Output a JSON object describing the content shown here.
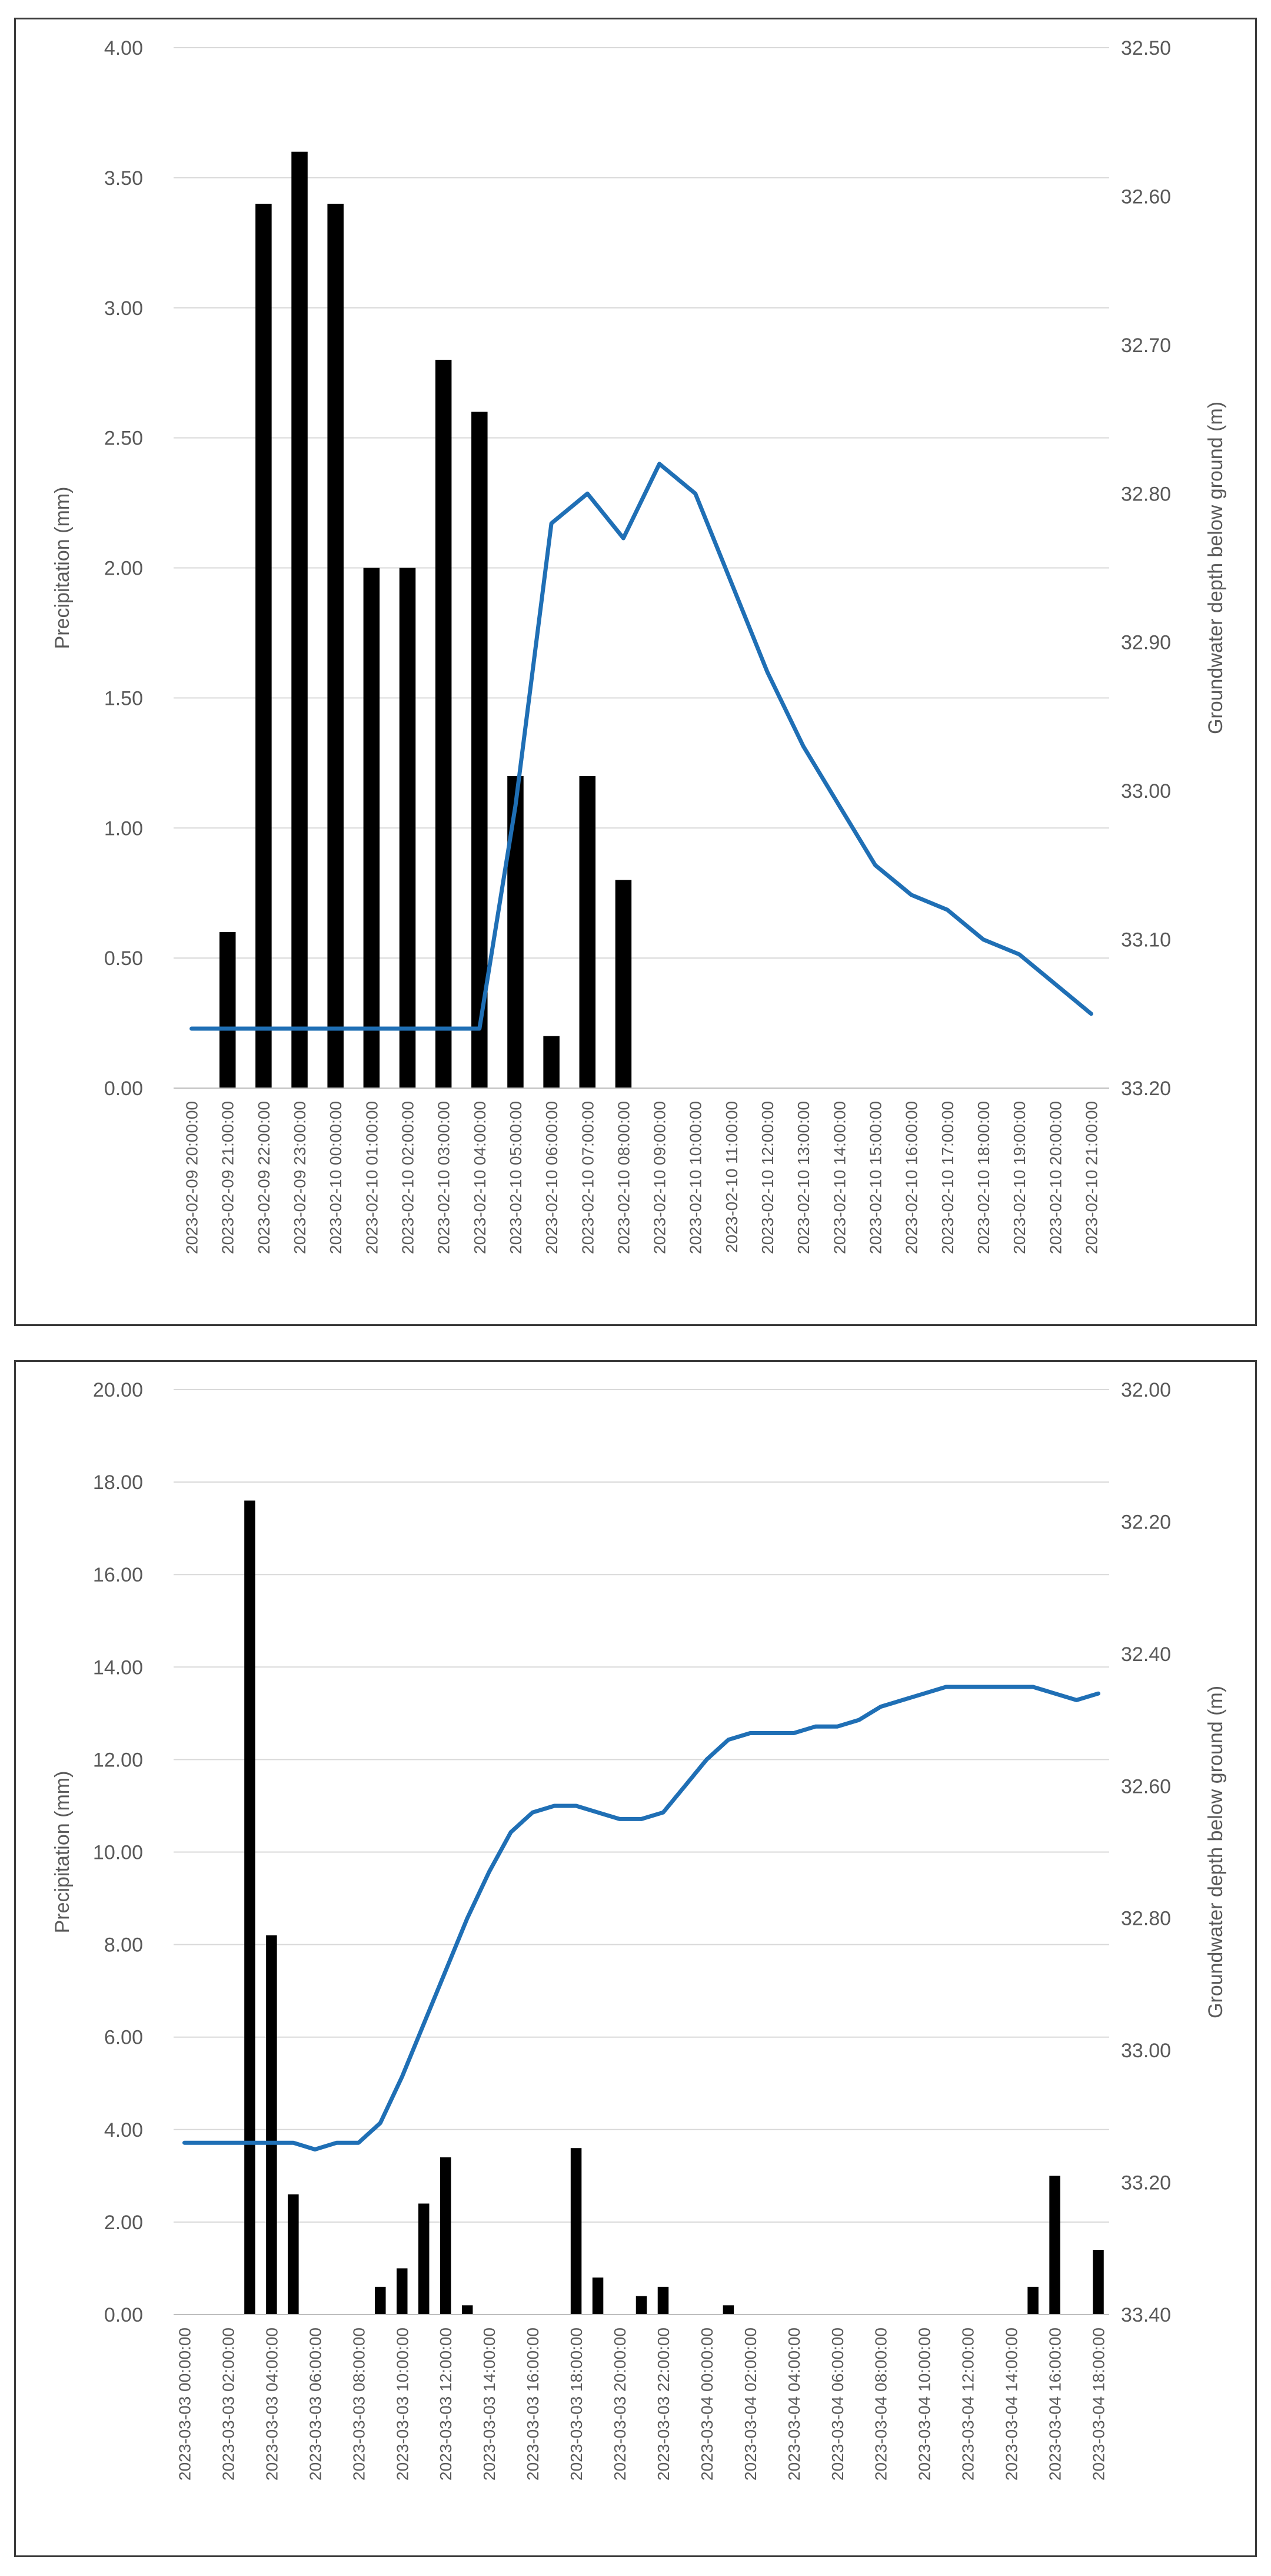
{
  "chart_data": [
    {
      "type": "bar+line",
      "title": "",
      "ylabel": "Precipitation (mm)",
      "y2label": "Groundwater depth below ground (m)",
      "ylim": [
        0,
        4
      ],
      "y_ticks": [
        "0.00",
        "0.50",
        "1.00",
        "1.50",
        "2.00",
        "2.50",
        "3.00",
        "3.50",
        "4.00"
      ],
      "y2lim": [
        32.5,
        33.2
      ],
      "y2_inverted": true,
      "y2_ticks": [
        "32.50",
        "32.60",
        "32.70",
        "32.80",
        "32.90",
        "33.00",
        "33.10",
        "33.20"
      ],
      "categories": [
        "2023-02-09 20:00:00",
        "2023-02-09 21:00:00",
        "2023-02-09 22:00:00",
        "2023-02-09 23:00:00",
        "2023-02-10 00:00:00",
        "2023-02-10 01:00:00",
        "2023-02-10 02:00:00",
        "2023-02-10 03:00:00",
        "2023-02-10 04:00:00",
        "2023-02-10 05:00:00",
        "2023-02-10 06:00:00",
        "2023-02-10 07:00:00",
        "2023-02-10 08:00:00",
        "2023-02-10 09:00:00",
        "2023-02-10 10:00:00",
        "2023-02-10 11:00:00",
        "2023-02-10 12:00:00",
        "2023-02-10 13:00:00",
        "2023-02-10 14:00:00",
        "2023-02-10 15:00:00",
        "2023-02-10 16:00:00",
        "2023-02-10 17:00:00",
        "2023-02-10 18:00:00",
        "2023-02-10 19:00:00",
        "2023-02-10 20:00:00",
        "2023-02-10 21:00:00"
      ],
      "series": [
        {
          "name": "Precipitation",
          "type": "bar",
          "axis": "left",
          "color": "#000000",
          "values": [
            0,
            0.6,
            3.4,
            3.6,
            3.4,
            2.0,
            2.0,
            2.8,
            2.6,
            1.2,
            0.2,
            1.2,
            0.8,
            0,
            0,
            0,
            0,
            0,
            0,
            0,
            0,
            0,
            0,
            0,
            0,
            0
          ]
        },
        {
          "name": "Groundwater depth",
          "type": "line",
          "axis": "right",
          "color": "#1f6fb5",
          "values": [
            33.16,
            33.16,
            33.16,
            33.16,
            33.16,
            33.16,
            33.16,
            33.16,
            33.16,
            33.01,
            32.82,
            32.8,
            32.83,
            32.78,
            32.8,
            32.86,
            32.92,
            32.97,
            33.01,
            33.05,
            33.07,
            33.08,
            33.1,
            33.11,
            33.13,
            33.15
          ]
        }
      ],
      "grid": true
    },
    {
      "type": "bar+line",
      "title": "",
      "ylabel": "Precipitation (mm)",
      "y2label": "Groundwater depth below ground (m)",
      "ylim": [
        0,
        20
      ],
      "y_ticks": [
        "0.00",
        "2.00",
        "4.00",
        "6.00",
        "8.00",
        "10.00",
        "12.00",
        "14.00",
        "16.00",
        "18.00",
        "20.00"
      ],
      "y2lim": [
        32.0,
        33.4
      ],
      "y2_inverted": true,
      "y2_ticks": [
        "32.00",
        "32.20",
        "32.40",
        "32.60",
        "32.80",
        "33.00",
        "33.20",
        "33.40"
      ],
      "categories": [
        "2023-03-03 00:00:00",
        "2023-03-03 01:00:00",
        "2023-03-03 02:00:00",
        "2023-03-03 03:00:00",
        "2023-03-03 04:00:00",
        "2023-03-03 05:00:00",
        "2023-03-03 06:00:00",
        "2023-03-03 07:00:00",
        "2023-03-03 08:00:00",
        "2023-03-03 09:00:00",
        "2023-03-03 10:00:00",
        "2023-03-03 11:00:00",
        "2023-03-03 12:00:00",
        "2023-03-03 13:00:00",
        "2023-03-03 14:00:00",
        "2023-03-03 15:00:00",
        "2023-03-03 16:00:00",
        "2023-03-03 17:00:00",
        "2023-03-03 18:00:00",
        "2023-03-03 19:00:00",
        "2023-03-03 20:00:00",
        "2023-03-03 21:00:00",
        "2023-03-03 22:00:00",
        "2023-03-03 23:00:00",
        "2023-03-04 00:00:00",
        "2023-03-04 01:00:00",
        "2023-03-04 02:00:00",
        "2023-03-04 03:00:00",
        "2023-03-04 04:00:00",
        "2023-03-04 05:00:00",
        "2023-03-04 06:00:00",
        "2023-03-04 07:00:00",
        "2023-03-04 08:00:00",
        "2023-03-04 09:00:00",
        "2023-03-04 10:00:00",
        "2023-03-04 11:00:00",
        "2023-03-04 12:00:00",
        "2023-03-04 13:00:00",
        "2023-03-04 14:00:00",
        "2023-03-04 15:00:00",
        "2023-03-04 16:00:00",
        "2023-03-04 17:00:00",
        "2023-03-04 18:00:00"
      ],
      "x_tick_every": 2,
      "series": [
        {
          "name": "Precipitation",
          "type": "bar",
          "axis": "left",
          "color": "#000000",
          "values": [
            0,
            0,
            0,
            17.6,
            8.2,
            2.6,
            0,
            0,
            0,
            0.6,
            1.0,
            2.4,
            3.4,
            0.2,
            0,
            0,
            0,
            0,
            3.6,
            0.8,
            0,
            0.4,
            0.6,
            0,
            0,
            0.2,
            0,
            0,
            0,
            0,
            0,
            0,
            0,
            0,
            0,
            0,
            0,
            0,
            0,
            0.6,
            3.0,
            0,
            1.4
          ]
        },
        {
          "name": "Groundwater depth",
          "type": "line",
          "axis": "right",
          "color": "#1f6fb5",
          "values": [
            33.14,
            33.14,
            33.14,
            33.14,
            33.14,
            33.14,
            33.15,
            33.14,
            33.14,
            33.11,
            33.04,
            32.96,
            32.88,
            32.8,
            32.73,
            32.67,
            32.64,
            32.63,
            32.63,
            32.64,
            32.65,
            32.65,
            32.64,
            32.6,
            32.56,
            32.53,
            32.52,
            32.52,
            32.52,
            32.51,
            32.51,
            32.5,
            32.48,
            32.47,
            32.46,
            32.45,
            32.45,
            32.45,
            32.45,
            32.45,
            32.46,
            32.47,
            32.46
          ]
        }
      ],
      "grid": true
    }
  ]
}
